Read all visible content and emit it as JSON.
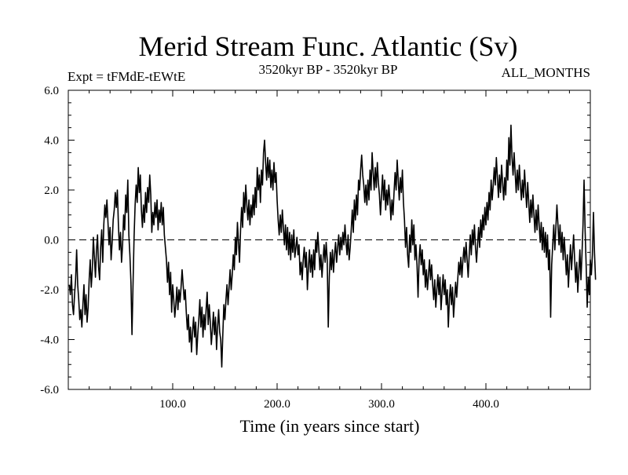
{
  "chart_data": {
    "type": "line",
    "title": "Merid Stream Func. Atlantic (Sv)",
    "subtitle_left": "Expt = tFMdE-tEWtE",
    "subtitle_center": "3520kyr BP - 3520kyr BP",
    "subtitle_right": "ALL_MONTHS",
    "xlabel": "Time (in years since start)",
    "ylabel": "",
    "xlim": [
      0,
      500
    ],
    "ylim": [
      -6,
      6
    ],
    "x_ticks": [
      100,
      200,
      300,
      400
    ],
    "x_tick_labels": [
      "100.0",
      "200.0",
      "300.0",
      "400.0"
    ],
    "y_ticks": [
      -6,
      -4,
      -2,
      0,
      2,
      4,
      6
    ],
    "y_tick_labels": [
      "-6.0",
      "-4.0",
      "-2.0",
      "0.0",
      "2.0",
      "4.0",
      "6.0"
    ],
    "zero_line": "dashed",
    "grid": false,
    "series": [
      {
        "name": "Merid Stream Func. Atlantic",
        "color": "#000000",
        "x_start": 1,
        "x_step": 1,
        "values": [
          -1.8,
          -2.2,
          -1.4,
          -2.6,
          -3.0,
          -2.2,
          -1.6,
          -0.4,
          -1.8,
          -2.4,
          -3.2,
          -2.8,
          -3.5,
          -2.6,
          -1.8,
          -3.0,
          -2.2,
          -3.3,
          -2.7,
          -1.6,
          -0.8,
          -1.9,
          -1.2,
          0.1,
          -0.7,
          -1.5,
          -0.4,
          0.2,
          -1.1,
          -1.6,
          -0.3,
          0.4,
          -0.9,
          0.6,
          1.4,
          0.9,
          1.6,
          0.7,
          -0.2,
          0.5,
          -0.8,
          -0.1,
          0.8,
          1.2,
          1.9,
          1.3,
          2.0,
          0.6,
          -0.4,
          0.3,
          -0.9,
          -0.2,
          1.0,
          0.4,
          1.8,
          1.1,
          2.4,
          0.2,
          -0.6,
          -1.7,
          -3.8,
          -1.8,
          0.1,
          1.4,
          2.2,
          1.5,
          2.9,
          1.9,
          2.6,
          1.2,
          0.5,
          1.4,
          0.7,
          1.9,
          1.1,
          2.1,
          1.5,
          2.6,
          1.8,
          0.3,
          1.1,
          0.6,
          1.5,
          0.9,
          1.6,
          0.4,
          1.2,
          0.7,
          1.5,
          0.6,
          1.3,
          0.2,
          -0.3,
          -0.8,
          -1.7,
          -0.9,
          -2.2,
          -1.3,
          -2.9,
          -1.8,
          -2.4,
          -3.1,
          -2.6,
          -1.9,
          -2.8,
          -2.0,
          -2.5,
          -1.9,
          -1.2,
          -1.8,
          -2.4,
          -2.0,
          -2.9,
          -3.6,
          -3.0,
          -4.1,
          -3.5,
          -4.5,
          -3.7,
          -3.1,
          -3.9,
          -3.3,
          -4.6,
          -3.8,
          -3.2,
          -2.4,
          -3.5,
          -2.7,
          -3.9,
          -3.0,
          -3.6,
          -2.8,
          -2.1,
          -3.4,
          -2.6,
          -3.3,
          -4.2,
          -3.6,
          -2.9,
          -3.8,
          -3.1,
          -4.4,
          -3.5,
          -2.8,
          -3.7,
          -4.0,
          -5.1,
          -3.8,
          -2.6,
          -3.2,
          -2.4,
          -1.8,
          -2.6,
          -1.9,
          -1.2,
          -2.0,
          -1.4,
          -0.6,
          -1.2,
          0.1,
          -0.6,
          0.7,
          -0.1,
          -0.9,
          0.4,
          1.3,
          0.5,
          1.9,
          1.1,
          2.2,
          1.4,
          0.8,
          1.6,
          0.6,
          1.4,
          0.9,
          1.8,
          1.0,
          2.1,
          1.3,
          2.9,
          2.0,
          2.6,
          1.5,
          2.8,
          2.2,
          3.5,
          4.0,
          3.1,
          2.4,
          3.3,
          2.5,
          3.2,
          2.1,
          2.8,
          2.0,
          3.1,
          2.3,
          2.7,
          1.6,
          0.8,
          0.2,
          1.0,
          0.3,
          1.2,
          0.5,
          -0.2,
          0.6,
          -0.4,
          0.5,
          -0.6,
          0.3,
          -0.8,
          0.2,
          -0.5,
          0.4,
          -0.7,
          -0.3,
          0.1,
          -0.6,
          -0.2,
          -1.4,
          -0.9,
          -1.6,
          -0.8,
          -0.3,
          -1.1,
          -0.5,
          -2.0,
          -1.1,
          -0.4,
          -1.3,
          -0.6,
          -1.5,
          -0.4,
          -1.2,
          0.0,
          -0.5,
          0.3,
          -0.4,
          -1.2,
          -0.6,
          -1.5,
          -0.8,
          -0.2,
          -0.9,
          -0.1,
          -0.8,
          -3.5,
          -1.5,
          -0.5,
          -1.2,
          -0.4,
          -1.3,
          -0.6,
          -0.1,
          -0.9,
          -0.3,
          0.2,
          -0.6,
          0.1,
          -0.4,
          0.3,
          -0.2,
          0.6,
          -0.1,
          -0.6,
          0.2,
          -0.8,
          -0.3,
          0.4,
          1.2,
          0.3,
          1.6,
          0.8,
          1.8,
          1.0,
          2.4,
          2.0,
          2.8,
          3.4,
          2.6,
          2.2,
          1.5,
          2.2,
          1.4,
          2.4,
          1.6,
          2.8,
          2.0,
          3.5,
          2.7,
          2.0,
          2.9,
          2.1,
          3.1,
          2.3,
          1.8,
          1.0,
          1.8,
          2.6,
          1.6,
          2.4,
          1.2,
          2.0,
          1.4,
          2.2,
          1.6,
          0.8,
          1.6,
          1.0,
          1.9,
          2.7,
          2.0,
          3.2,
          2.4,
          1.6,
          2.5,
          1.9,
          2.8,
          1.5,
          0.8,
          -0.3,
          0.5,
          -0.6,
          -1.1,
          0.2,
          -0.5,
          0.8,
          -0.2,
          0.6,
          -0.8,
          -0.2,
          -1.0,
          -2.3,
          -0.8,
          -0.2,
          -1.0,
          -0.4,
          -1.4,
          -0.8,
          -1.9,
          -1.2,
          -2.0,
          -1.4,
          -0.8,
          -1.6,
          -1.0,
          -1.8,
          -2.4,
          -1.6,
          -2.7,
          -2.0,
          -1.4,
          -2.2,
          -1.5,
          -2.8,
          -2.1,
          -1.4,
          -2.2,
          -1.6,
          -2.6,
          -2.0,
          -3.5,
          -2.4,
          -1.8,
          -2.6,
          -1.9,
          -3.1,
          -2.4,
          -1.7,
          -2.3,
          -1.6,
          -0.9,
          -1.4,
          -0.7,
          -1.5,
          -0.8,
          -0.3,
          -0.9,
          -0.1,
          -0.8,
          -1.5,
          -0.6,
          0.2,
          -0.6,
          0.4,
          -0.2,
          0.6,
          -0.3,
          -0.9,
          -0.2,
          0.5,
          -0.3,
          0.8,
          0.1,
          1.0,
          0.4,
          1.3,
          0.6,
          1.5,
          0.8,
          1.9,
          1.2,
          2.4,
          1.6,
          2.2,
          2.9,
          2.2,
          3.3,
          2.5,
          1.7,
          2.6,
          1.9,
          3.0,
          2.3,
          1.6,
          2.5,
          1.8,
          3.2,
          2.4,
          4.1,
          3.0,
          4.6,
          3.3,
          2.6,
          3.5,
          2.7,
          1.9,
          2.8,
          2.0,
          3.0,
          2.2,
          1.6,
          2.4,
          1.7,
          2.8,
          2.0,
          1.3,
          2.3,
          1.5,
          0.7,
          1.6,
          0.9,
          1.8,
          1.0,
          0.3,
          1.2,
          0.4,
          1.4,
          0.6,
          -0.1,
          0.7,
          -0.4,
          0.5,
          -0.5,
          0.3,
          -0.7,
          0.2,
          -1.2,
          -0.4,
          -3.1,
          -1.0,
          -0.2,
          0.6,
          -0.4,
          0.5,
          1.4,
          0.6,
          -0.2,
          0.6,
          -0.5,
          0.3,
          -0.8,
          0.1,
          -0.6,
          -1.4,
          -0.6,
          -1.9,
          -1.0,
          -0.2,
          -1.2,
          -0.5,
          0.2,
          -0.8,
          -1.7,
          -0.9,
          -2.1,
          -1.3,
          -0.4,
          -1.6,
          -0.6,
          0.6,
          2.4,
          0.4,
          -1.0,
          -2.7,
          -1.5,
          -2.2,
          -0.8,
          -1.4,
          -0.6,
          1.1,
          -0.5,
          -1.6
        ]
      }
    ]
  }
}
